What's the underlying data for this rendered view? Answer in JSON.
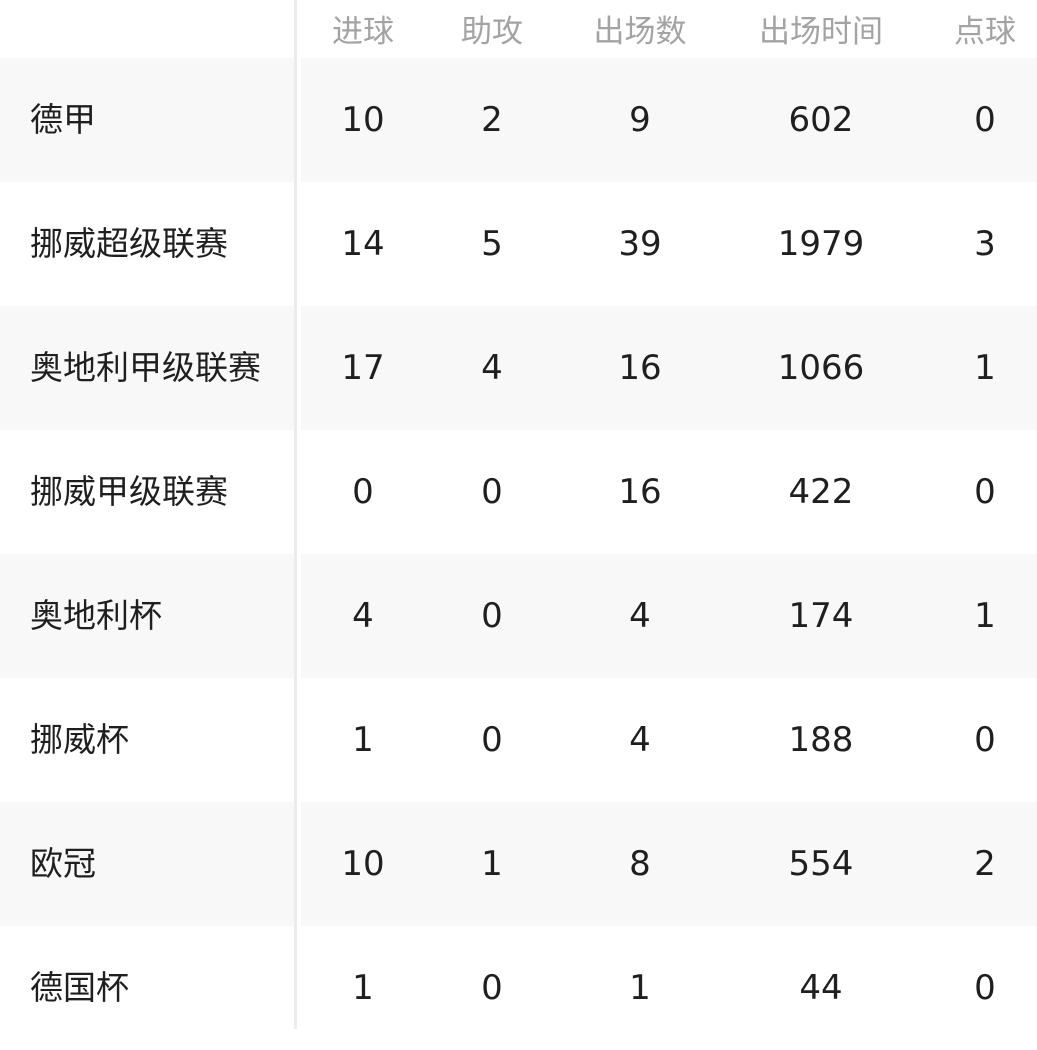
{
  "table": {
    "headers": [
      "进球",
      "助攻",
      "出场数",
      "出场时间",
      "点球"
    ],
    "rows": [
      {
        "competition": "德甲",
        "values": [
          "10",
          "2",
          "9",
          "602",
          "0"
        ]
      },
      {
        "competition": "挪威超级联赛",
        "values": [
          "14",
          "5",
          "39",
          "1979",
          "3"
        ]
      },
      {
        "competition": "奥地利甲级联赛",
        "values": [
          "17",
          "4",
          "16",
          "1066",
          "1"
        ]
      },
      {
        "competition": "挪威甲级联赛",
        "values": [
          "0",
          "0",
          "16",
          "422",
          "0"
        ]
      },
      {
        "competition": "奥地利杯",
        "values": [
          "4",
          "0",
          "4",
          "174",
          "1"
        ]
      },
      {
        "competition": "挪威杯",
        "values": [
          "1",
          "0",
          "4",
          "188",
          "0"
        ]
      },
      {
        "competition": "欧冠",
        "values": [
          "10",
          "1",
          "8",
          "554",
          "2"
        ]
      },
      {
        "competition": "德国杯",
        "values": [
          "1",
          "0",
          "1",
          "44",
          "0"
        ]
      }
    ]
  }
}
